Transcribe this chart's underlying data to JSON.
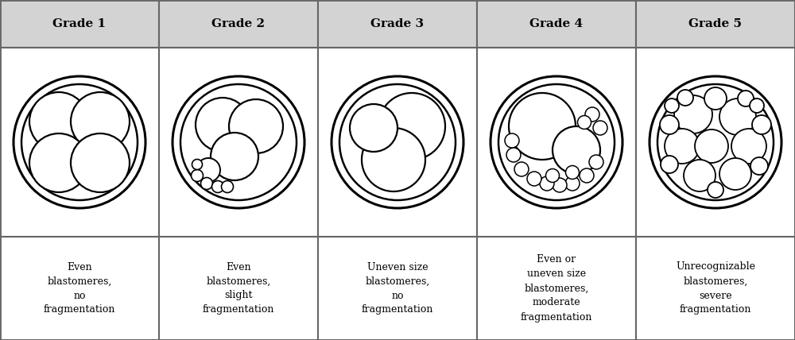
{
  "grades": [
    "Grade 1",
    "Grade 2",
    "Grade 3",
    "Grade 4",
    "Grade 5"
  ],
  "descriptions": [
    "Even\nblastomeres,\nno\nfragmentation",
    "Even\nblastomeres,\nslight\nfragmentation",
    "Uneven size\nblastomeres,\nno\nfragmentation",
    "Even or\nuneven size\nblastomeres,\nmoderate\nfragmentation",
    "Unrecognizable\nblastomeres,\nsevere\nfragmentation"
  ],
  "header_bg": "#d3d3d3",
  "cell_bg": "#ffffff",
  "border_color": "#666666",
  "text_color": "#000000",
  "fig_bg": "#ffffff"
}
